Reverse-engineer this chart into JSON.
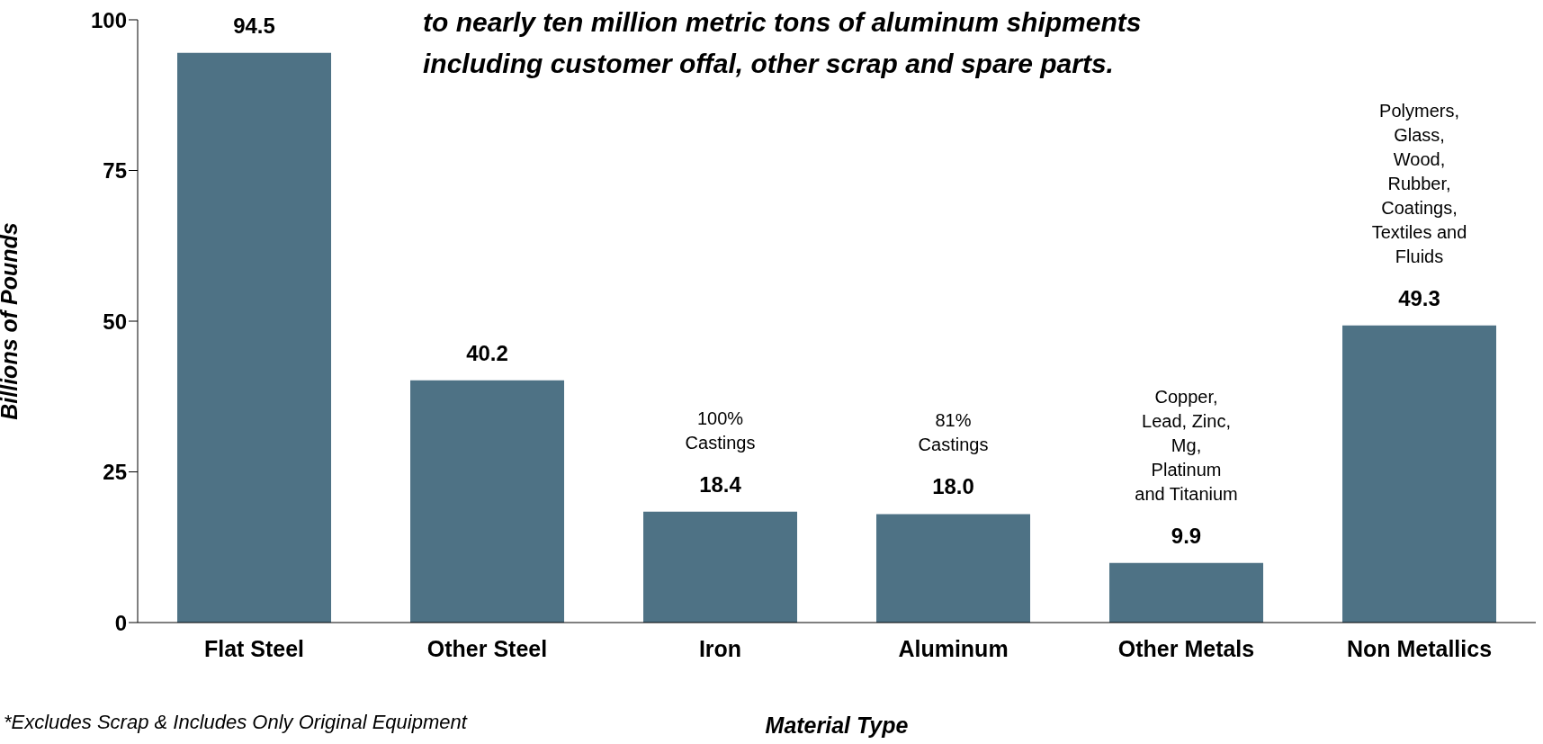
{
  "chart_data": {
    "type": "bar",
    "xlabel": "Material Type",
    "ylabel": "Billions of Pounds",
    "categories": [
      "Flat Steel",
      "Other Steel",
      "Iron",
      "Aluminum",
      "Other Metals",
      "Non Metallics"
    ],
    "values": [
      94.5,
      40.2,
      18.4,
      18.0,
      9.9,
      49.3
    ],
    "value_labels": [
      "94.5",
      "40.2",
      "18.4",
      "18.0",
      "9.9",
      "49.3"
    ],
    "color": "#4e7285",
    "ylim": [
      0,
      100
    ],
    "yticks": [
      0,
      25,
      50,
      75,
      100
    ],
    "grid": false,
    "legend": false,
    "annotations": [
      "to nearly ten million metric tons of aluminum shipments\nincluding customer offal, other scrap and spare parts.",
      "*Excludes Scrap & Includes Only Original Equipment",
      "100%\nCastings",
      "81%\nCastings",
      "Copper,\nLead, Zinc,\nMg,\nPlatinum\nand Titanium",
      "Polymers,\nGlass,\nWood,\nRubber,\nCoatings,\nTextiles and\nFluids"
    ]
  }
}
